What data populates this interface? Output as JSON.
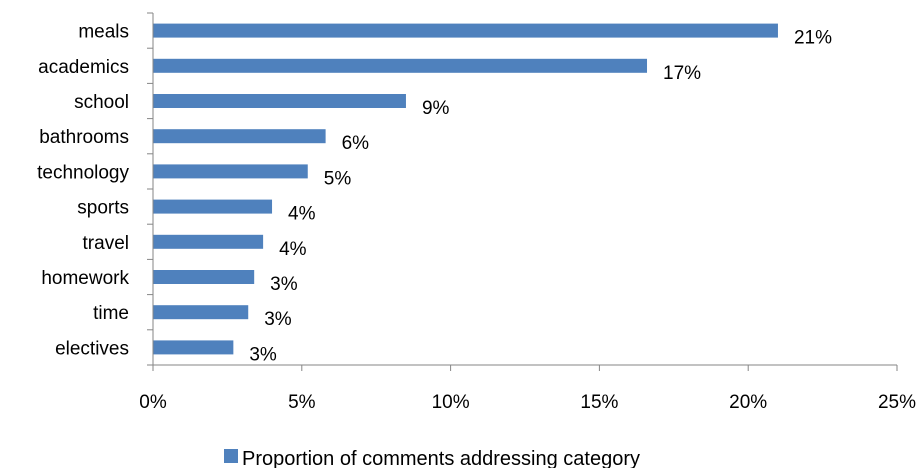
{
  "chart_data": {
    "type": "bar",
    "orientation": "horizontal",
    "categories": [
      "meals",
      "academics",
      "school",
      "bathrooms",
      "technology",
      "sports",
      "travel",
      "homework",
      "time",
      "electives"
    ],
    "series": [
      {
        "name": "Proportion of comments addressing category",
        "values": [
          0.21,
          0.166,
          0.085,
          0.058,
          0.052,
          0.04,
          0.037,
          0.034,
          0.032,
          0.027
        ],
        "data_labels": [
          "21%",
          "17%",
          "9%",
          "6%",
          "5%",
          "4%",
          "4%",
          "3%",
          "3%",
          "3%"
        ],
        "color": "#4F81BD"
      }
    ],
    "xlim": [
      0,
      0.25
    ],
    "x_ticks": [
      0,
      0.05,
      0.1,
      0.15,
      0.2,
      0.25
    ],
    "x_tick_labels": [
      "0%",
      "5%",
      "10%",
      "15%",
      "20%",
      "25%"
    ],
    "grid": false,
    "legend": {
      "position": "bottom",
      "entries": [
        "Proportion of comments addressing category"
      ]
    }
  }
}
